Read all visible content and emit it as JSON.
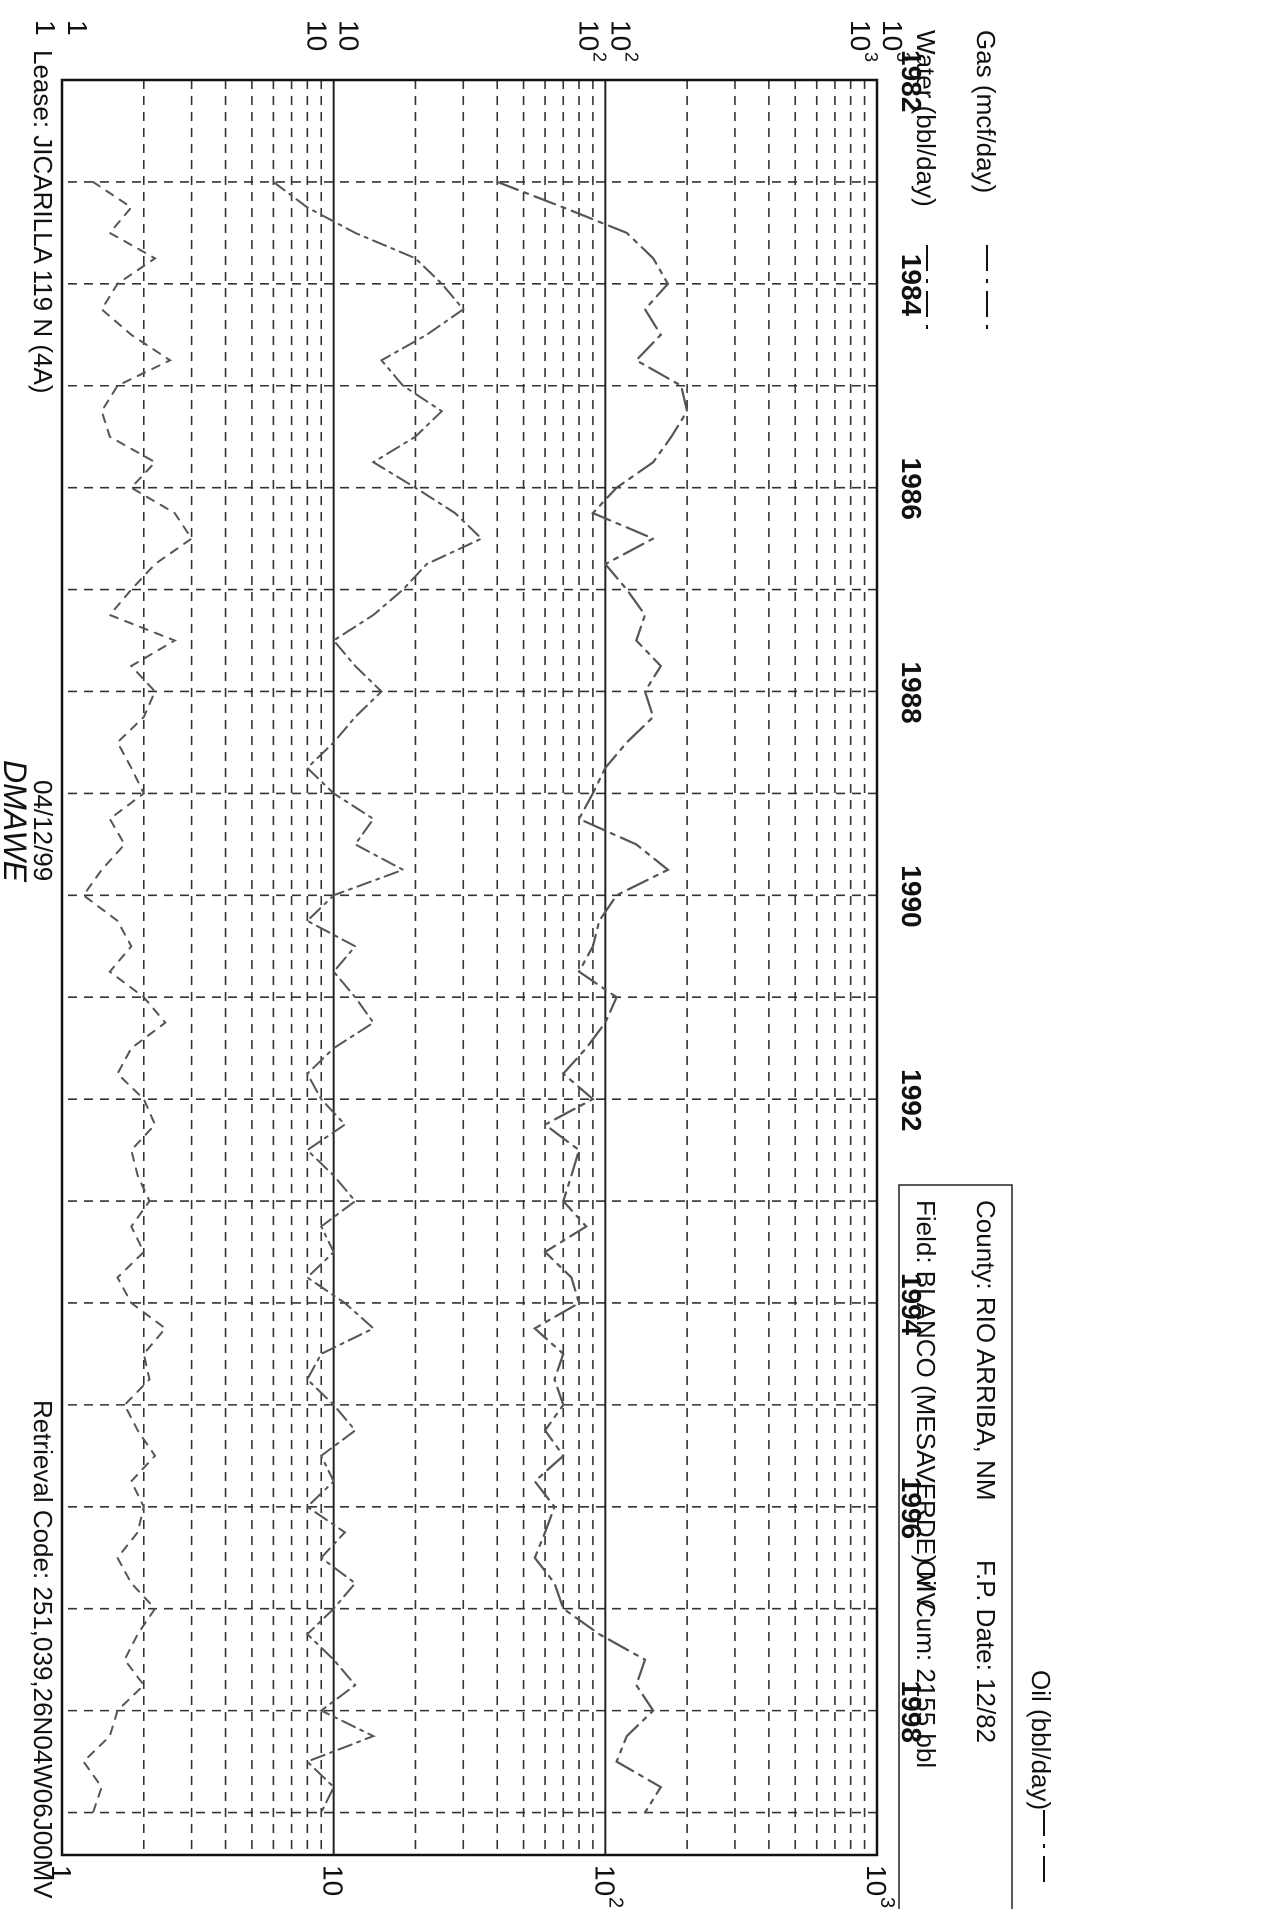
{
  "header": {
    "title": "DMAWE",
    "lease": "Lease: JICARILLA 119 N  (4A)",
    "date": "04/12/99",
    "retrieval": "Retrieval Code: 251,039,26N04W06J00MV"
  },
  "info_box": {
    "county": "County: RIO ARRIBA, NM",
    "fp_date": "F.P. Date: 12/82",
    "field": "Field: BLANCO (MESAVERDE) MV",
    "oil_cum": "Oil Cum: 2155 bbl"
  },
  "legend": [
    {
      "label": "Gas (mcf/day)",
      "style": "dash-dot"
    },
    {
      "label": "Water (bbl/day)",
      "style": "dash-dot"
    },
    {
      "label": "Oil (bbl/day)",
      "style": "dash-dot"
    }
  ],
  "top_axis_ticks": [
    "10",
    "10",
    "10",
    "1"
  ],
  "top_axis_exponents": [
    "3",
    "2",
    "",
    ""
  ],
  "left_axis_ticks": [
    {
      "base": "10",
      "exp": "3"
    },
    {
      "base": "10",
      "exp": "3"
    },
    {
      "base": "10",
      "exp": "2"
    },
    {
      "base": "10",
      "exp": "2"
    },
    {
      "base": "10",
      "exp": ""
    },
    {
      "base": "10",
      "exp": ""
    },
    {
      "base": "1",
      "exp": ""
    },
    {
      "base": "1",
      "exp": ""
    }
  ],
  "colors": {
    "ink": "#111111",
    "grid": "#222222",
    "series": "#555555"
  },
  "chart_data": {
    "type": "line",
    "x_scale": "time",
    "y_scale": "log",
    "ylim": [
      1,
      1000
    ],
    "xlim": [
      "1982-01",
      "1999-06"
    ],
    "x_tick_labels": [
      "1982",
      "1984",
      "1986",
      "1988",
      "1990",
      "1992",
      "1994",
      "1996",
      "1998"
    ],
    "grid": true,
    "series": [
      {
        "name": "Gas (mcf/day)",
        "x": [
          "1983-01",
          "1983-04",
          "1983-07",
          "1983-10",
          "1984-01",
          "1984-04",
          "1984-07",
          "1984-10",
          "1985-01",
          "1985-04",
          "1985-07",
          "1985-10",
          "1986-01",
          "1986-04",
          "1986-07",
          "1986-10",
          "1987-01",
          "1987-04",
          "1987-07",
          "1987-10",
          "1988-01",
          "1988-04",
          "1988-07",
          "1988-10",
          "1989-01",
          "1989-04",
          "1989-07",
          "1989-10",
          "1990-01",
          "1990-04",
          "1990-07",
          "1990-10",
          "1991-01",
          "1991-04",
          "1991-07",
          "1991-10",
          "1992-01",
          "1992-04",
          "1992-07",
          "1992-10",
          "1993-01",
          "1993-04",
          "1993-07",
          "1993-10",
          "1994-01",
          "1994-04",
          "1994-07",
          "1994-10",
          "1995-01",
          "1995-04",
          "1995-07",
          "1995-10",
          "1996-01",
          "1996-04",
          "1996-07",
          "1996-10",
          "1997-01",
          "1997-04",
          "1997-07",
          "1997-10",
          "1998-01",
          "1998-04",
          "1998-07",
          "1998-10",
          "1999-01"
        ],
        "y": [
          40,
          70,
          120,
          150,
          170,
          140,
          160,
          130,
          190,
          200,
          175,
          150,
          110,
          90,
          150,
          100,
          120,
          140,
          130,
          160,
          140,
          150,
          120,
          100,
          90,
          80,
          130,
          170,
          110,
          95,
          90,
          80,
          110,
          100,
          85,
          70,
          90,
          60,
          80,
          75,
          70,
          85,
          60,
          75,
          80,
          55,
          70,
          65,
          70,
          60,
          70,
          55,
          65,
          60,
          55,
          65,
          70,
          95,
          140,
          130,
          150,
          120,
          110,
          160,
          140
        ]
      },
      {
        "name": "Water (bbl/day)",
        "x": [
          "1983-01",
          "1983-04",
          "1983-07",
          "1983-10",
          "1984-01",
          "1984-04",
          "1984-07",
          "1984-10",
          "1985-01",
          "1985-04",
          "1985-07",
          "1985-10",
          "1986-01",
          "1986-04",
          "1986-07",
          "1986-10",
          "1987-01",
          "1987-04",
          "1987-07",
          "1987-10",
          "1988-01",
          "1988-04",
          "1988-07",
          "1988-10",
          "1989-01",
          "1989-04",
          "1989-07",
          "1989-10",
          "1990-01",
          "1990-04",
          "1990-07",
          "1990-10",
          "1991-01",
          "1991-04",
          "1991-07",
          "1991-10",
          "1992-01",
          "1992-04",
          "1992-07",
          "1992-10",
          "1993-01",
          "1993-04",
          "1993-07",
          "1993-10",
          "1994-01",
          "1994-04",
          "1994-07",
          "1994-10",
          "1995-01",
          "1995-04",
          "1995-07",
          "1995-10",
          "1996-01",
          "1996-04",
          "1996-07",
          "1996-10",
          "1997-01",
          "1997-04",
          "1997-07",
          "1997-10",
          "1998-01",
          "1998-04",
          "1998-07",
          "1998-10",
          "1999-01"
        ],
        "y": [
          6,
          8,
          12,
          20,
          25,
          30,
          22,
          15,
          18,
          25,
          20,
          14,
          20,
          28,
          35,
          22,
          18,
          14,
          10,
          12,
          15,
          12,
          10,
          8,
          10,
          14,
          12,
          18,
          10,
          8,
          12,
          10,
          12,
          14,
          10,
          8,
          9,
          11,
          8,
          10,
          12,
          9,
          10,
          8,
          11,
          14,
          9,
          8,
          10,
          12,
          9,
          10,
          8,
          11,
          9,
          12,
          10,
          8,
          10,
          12,
          9,
          14,
          8,
          10,
          9
        ]
      },
      {
        "name": "Oil (bbl/day)",
        "x": [
          "1983-01",
          "1983-04",
          "1983-07",
          "1983-10",
          "1984-01",
          "1984-04",
          "1984-07",
          "1984-10",
          "1985-01",
          "1985-04",
          "1985-07",
          "1985-10",
          "1986-01",
          "1986-04",
          "1986-07",
          "1986-10",
          "1987-01",
          "1987-04",
          "1987-07",
          "1987-10",
          "1988-01",
          "1988-04",
          "1988-07",
          "1988-10",
          "1989-01",
          "1989-04",
          "1989-07",
          "1989-10",
          "1990-01",
          "1990-04",
          "1990-07",
          "1990-10",
          "1991-01",
          "1991-04",
          "1991-07",
          "1991-10",
          "1992-01",
          "1992-04",
          "1992-07",
          "1992-10",
          "1993-01",
          "1993-04",
          "1993-07",
          "1993-10",
          "1994-01",
          "1994-04",
          "1994-07",
          "1994-10",
          "1995-01",
          "1995-04",
          "1995-07",
          "1995-10",
          "1996-01",
          "1996-04",
          "1996-07",
          "1996-10",
          "1997-01",
          "1997-04",
          "1997-07",
          "1997-10",
          "1998-01",
          "1998-04",
          "1998-07",
          "1998-10",
          "1999-01"
        ],
        "y": [
          1.3,
          1.8,
          1.5,
          2.2,
          1.6,
          1.4,
          1.8,
          2.5,
          1.6,
          1.4,
          1.5,
          2.2,
          1.8,
          2.6,
          3.0,
          2.2,
          1.8,
          1.5,
          2.6,
          1.8,
          2.2,
          2.0,
          1.6,
          1.8,
          2.0,
          1.5,
          1.7,
          1.4,
          1.2,
          1.6,
          1.8,
          1.5,
          2.0,
          2.4,
          1.8,
          1.6,
          2.0,
          2.2,
          1.8,
          1.9,
          2.1,
          1.8,
          2.0,
          1.6,
          1.8,
          2.4,
          2.0,
          2.1,
          1.7,
          1.9,
          2.2,
          1.8,
          2.0,
          1.9,
          1.6,
          1.8,
          2.2,
          1.9,
          1.7,
          2.0,
          1.6,
          1.5,
          1.2,
          1.4,
          1.3
        ]
      }
    ]
  }
}
